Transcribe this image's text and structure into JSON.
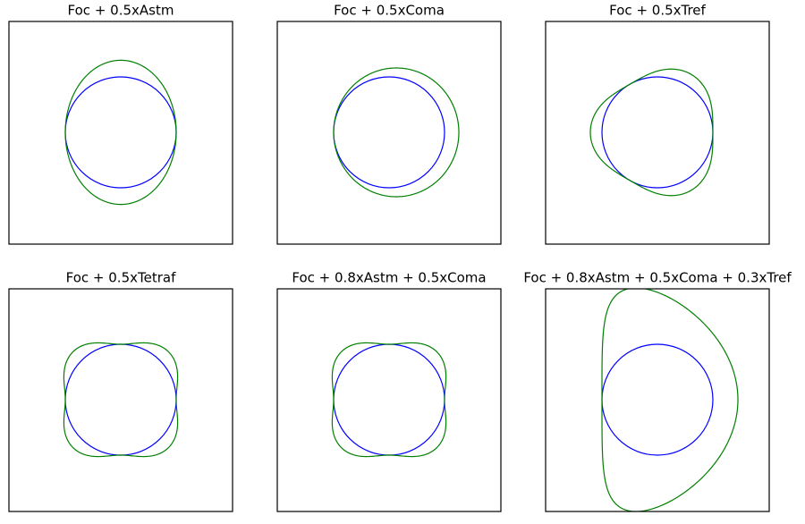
{
  "panels": [
    {
      "title": "Foc + 0.5xAstm"
    },
    {
      "title": "Foc + 0.5xComa"
    },
    {
      "title": "Foc + 0.5xTref"
    },
    {
      "title": "Foc + 0.5xTetraf"
    },
    {
      "title": "Foc + 0.8xAstm + 0.5xComa"
    },
    {
      "title": "Foc + 0.8xAstm + 0.5xComa + 0.3xTref"
    }
  ]
}
